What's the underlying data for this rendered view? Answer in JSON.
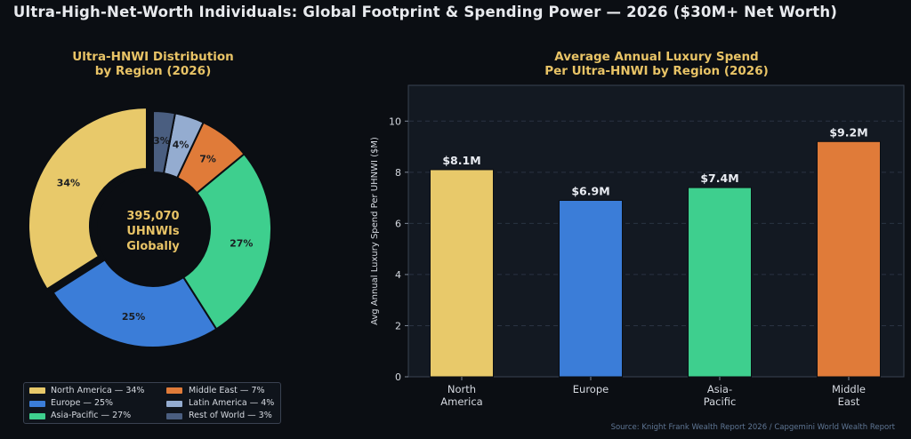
{
  "title": "Ultra-High-Net-Worth Individuals: Global Footprint & Spending Power — 2026 ($30M+ Net Worth)",
  "source": "Source: Knight Frank Wealth Report 2026 / Capgemini World Wealth Report",
  "colors": {
    "background": "#0b0e13",
    "panel": "#131922",
    "accent_gold": "#e8c366",
    "grid": "#2a3342",
    "axis_text": "#d5d9e0",
    "bar_label": "#e9ecf2"
  },
  "chart_data": [
    {
      "type": "pie",
      "title_line1": "Ultra-HNWI Distribution",
      "title_line2": "by Region (2026)",
      "center_line1": "395,070",
      "center_line2": "UHNWIs",
      "center_line3": "Globally",
      "categories": [
        "North America",
        "Europe",
        "Asia-Pacific",
        "Middle East",
        "Latin America",
        "Rest of World"
      ],
      "values": [
        34,
        25,
        27,
        7,
        4,
        3
      ],
      "labels": [
        "34%",
        "25%",
        "27%",
        "7%",
        "4%",
        "3%"
      ],
      "colors": [
        "#e8c96a",
        "#3b7dd8",
        "#3ecf8e",
        "#e07b39",
        "#94acd0",
        "#4a5e80"
      ],
      "exploded": [
        "North America"
      ],
      "legend": [
        "North America — 34%",
        "Europe — 25%",
        "Asia-Pacific — 27%",
        "Middle East — 7%",
        "Latin America — 4%",
        "Rest of World — 3%"
      ],
      "legend_placement": "bottom"
    },
    {
      "type": "bar",
      "title_line1": "Average Annual Luxury Spend",
      "title_line2": "Per Ultra-HNWI by Region (2026)",
      "categories": [
        "North America",
        "Europe",
        "Asia-Pacific",
        "Middle East"
      ],
      "category_labels": [
        [
          "North",
          "America"
        ],
        [
          "Europe"
        ],
        [
          "Asia-",
          "Pacific"
        ],
        [
          "Middle",
          "East"
        ]
      ],
      "values": [
        8.1,
        6.9,
        7.4,
        9.2
      ],
      "value_labels": [
        "$8.1M",
        "$6.9M",
        "$7.4M",
        "$9.2M"
      ],
      "colors": [
        "#e8c96a",
        "#3b7dd8",
        "#3ecf8e",
        "#e07b39"
      ],
      "ylabel": "Avg Annual Luxury Spend Per UHNWI ($M)",
      "ylim": [
        0,
        11.4
      ],
      "yticks": [
        "0",
        "2",
        "4",
        "6",
        "8",
        "10"
      ],
      "ytick_values": [
        0,
        2,
        4,
        6,
        8,
        10
      ],
      "grid": true
    }
  ]
}
